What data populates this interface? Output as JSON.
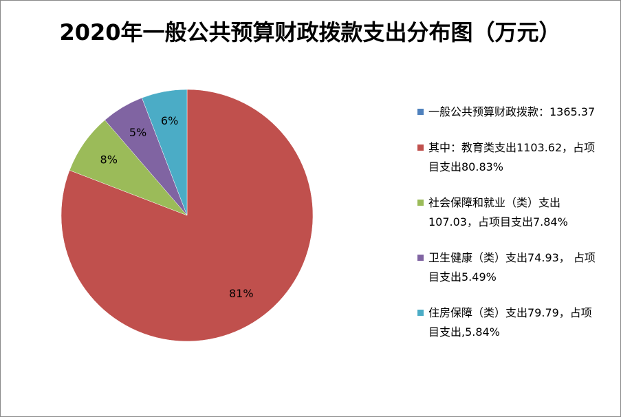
{
  "chart_data": {
    "type": "pie",
    "title": "2020年一般公共预算财政拨款支出分布图（万元）",
    "categories": [
      "一般公共预算财政拨款：1365.37",
      "其中：教育类支出1103.62，占项目支出80.83%",
      "社会保障和就业（类）支出107.03，占项目支出7.84%",
      "卫生健康（类）支出74.93， 占项目支出5.49%",
      "住房保障（类）支出79.79，占项目支出,5.84%"
    ],
    "values": [
      null,
      80.83,
      7.84,
      5.49,
      5.84
    ],
    "value_labels": [
      null,
      "81%",
      "8%",
      "5%",
      "6%"
    ],
    "colors": [
      "#4f81bd",
      "#c0504d",
      "#9bbb59",
      "#8064a2",
      "#4bacc6"
    ],
    "legend": "right"
  }
}
